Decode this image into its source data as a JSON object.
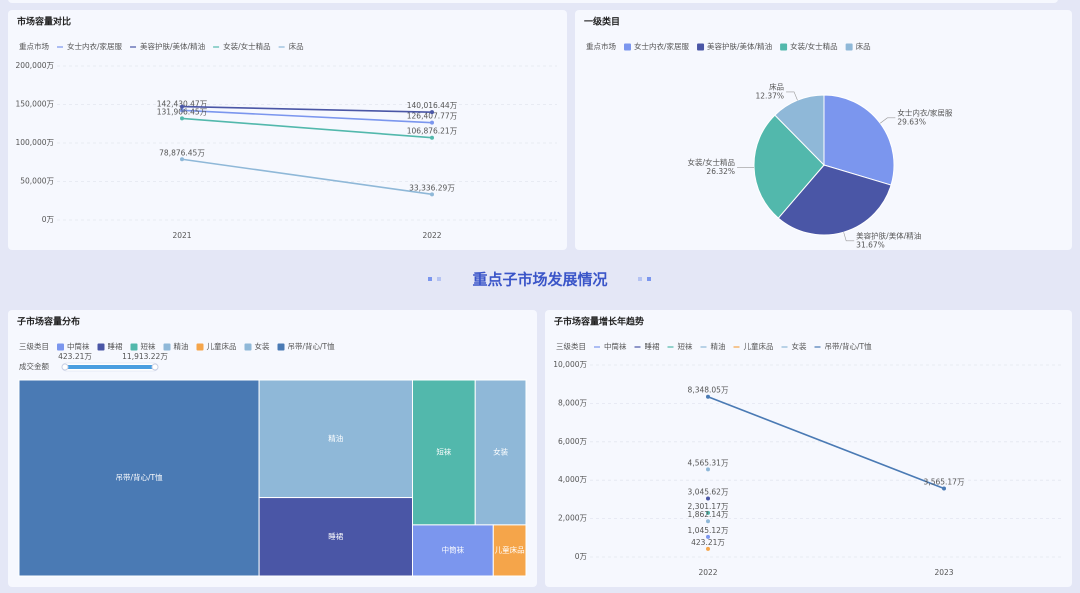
{
  "section_title": "重点子市场发展情况",
  "chart_data": [
    {
      "type": "line",
      "title": "市场容量对比",
      "legend_title": "重点市场",
      "categories": [
        "2021",
        "2022"
      ],
      "series": [
        {
          "name": "女士内衣/家居服",
          "color": "#7b96ee",
          "values": [
            142430.47,
            126407.77
          ],
          "value_labels": [
            "142,430.47万",
            "126,407.77万"
          ]
        },
        {
          "name": "美容护肤/美体/精油",
          "color": "#4a56a6",
          "values": [
            147270,
            140016.44
          ],
          "value_labels": [
            null,
            "140,016.44万"
          ]
        },
        {
          "name": "女装/女士精品",
          "color": "#52b8ac",
          "values": [
            131906.45,
            106876.21
          ],
          "value_labels": [
            "131,906.45万",
            "106,876.21万"
          ]
        },
        {
          "name": "床品",
          "color": "#8fb8d8",
          "values": [
            78876.45,
            33336.29
          ],
          "value_labels": [
            "78,876.45万",
            "33,336.29万"
          ]
        }
      ],
      "ylim": [
        0,
        200000
      ],
      "yticks": [
        {
          "value": 0,
          "label": "0万"
        },
        {
          "value": 50000,
          "label": "50,000万"
        },
        {
          "value": 100000,
          "label": "100,000万"
        },
        {
          "value": 150000,
          "label": "150,000万"
        },
        {
          "value": 200000,
          "label": "200,000万"
        }
      ],
      "grid": true
    },
    {
      "type": "pie",
      "title": "一级类目",
      "legend_title": "重点市场",
      "categories": [
        "女士内衣/家居服",
        "美容护肤/美体/精油",
        "女装/女士精品",
        "床品"
      ],
      "values": [
        29.63,
        31.67,
        26.32,
        12.37
      ],
      "value_labels": [
        "29.63%",
        "31.67%",
        "26.32%",
        "12.37%"
      ],
      "colors": [
        "#7b96ee",
        "#4a56a6",
        "#52b8ac",
        "#8fb8d8"
      ]
    },
    {
      "type": "treemap",
      "title": "子市场容量分布",
      "legend_title": "三级类目",
      "legend": [
        {
          "name": "中筒袜",
          "color": "#7b96ee"
        },
        {
          "name": "睡裙",
          "color": "#4a56a6"
        },
        {
          "name": "短袜",
          "color": "#52b8ac"
        },
        {
          "name": "精油",
          "color": "#8fb8d8"
        },
        {
          "name": "儿童床品",
          "color": "#f5a54a"
        },
        {
          "name": "女装",
          "color": "#8fb8d8"
        },
        {
          "name": "吊带/背心/T恤",
          "color": "#4a7ab4"
        }
      ],
      "categories": [
        "吊带/背心/T恤",
        "精油",
        "睡裙",
        "短袜",
        "女装",
        "中筒袜",
        "儿童床品"
      ],
      "values": [
        11913.22,
        4565.31,
        3045.62,
        2301.17,
        1862.14,
        1045.12,
        423.21
      ],
      "colors": [
        "#4a7ab4",
        "#8fb8d8",
        "#4a56a6",
        "#52b8ac",
        "#8fb8d8",
        "#7b96ee",
        "#f5a54a"
      ],
      "visual_map": {
        "title": "成交金额",
        "min": {
          "value": 423.21,
          "label": "423.21万"
        },
        "max": {
          "value": 11913.22,
          "label": "11,913.22万"
        },
        "color": "#4a9ee0"
      }
    },
    {
      "type": "line",
      "title": "子市场容量增长年趋势",
      "legend_title": "三级类目",
      "categories": [
        "2022",
        "2023"
      ],
      "series": [
        {
          "name": "中筒袜",
          "color": "#7b96ee",
          "values": [
            1045.12,
            null
          ],
          "value_labels": [
            "1,045.12万",
            null
          ]
        },
        {
          "name": "睡裙",
          "color": "#4a56a6",
          "values": [
            3045.62,
            null
          ],
          "value_labels": [
            "3,045.62万",
            null
          ]
        },
        {
          "name": "短袜",
          "color": "#52b8ac",
          "values": [
            2301.17,
            null
          ],
          "value_labels": [
            "2,301.17万",
            null
          ]
        },
        {
          "name": "精油",
          "color": "#8fb8d8",
          "values": [
            4565.31,
            null
          ],
          "value_labels": [
            "4,565.31万",
            null
          ]
        },
        {
          "name": "儿童床品",
          "color": "#f5a54a",
          "values": [
            423.21,
            null
          ],
          "value_labels": [
            "423.21万",
            null
          ]
        },
        {
          "name": "女装",
          "color": "#8fb8d8",
          "values": [
            1862.14,
            null
          ],
          "value_labels": [
            "1,862.14万",
            null
          ]
        },
        {
          "name": "吊带/背心/T恤",
          "color": "#4a7ab4",
          "values": [
            8348.05,
            3565.17
          ],
          "value_labels": [
            "8,348.05万",
            "3,565.17万"
          ]
        }
      ],
      "ylim": [
        0,
        10000
      ],
      "yticks": [
        {
          "value": 0,
          "label": "0万"
        },
        {
          "value": 2000,
          "label": "2,000万"
        },
        {
          "value": 4000,
          "label": "4,000万"
        },
        {
          "value": 6000,
          "label": "6,000万"
        },
        {
          "value": 8000,
          "label": "8,000万"
        },
        {
          "value": 10000,
          "label": "10,000万"
        }
      ],
      "grid": true
    }
  ]
}
